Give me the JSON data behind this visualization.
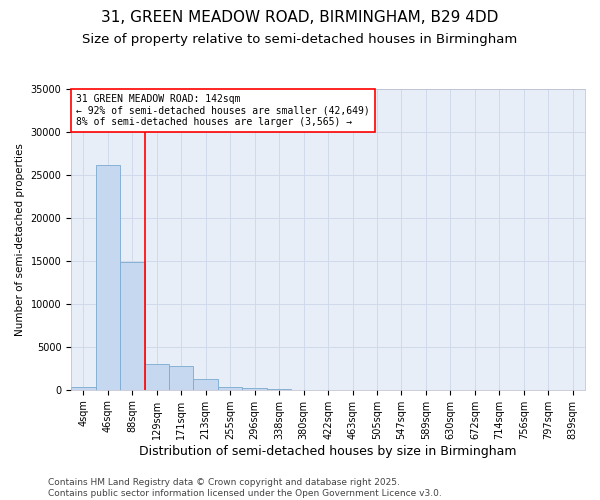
{
  "title1": "31, GREEN MEADOW ROAD, BIRMINGHAM, B29 4DD",
  "title2": "Size of property relative to semi-detached houses in Birmingham",
  "xlabel": "Distribution of semi-detached houses by size in Birmingham",
  "ylabel": "Number of semi-detached properties",
  "categories": [
    "4sqm",
    "46sqm",
    "88sqm",
    "129sqm",
    "171sqm",
    "213sqm",
    "255sqm",
    "296sqm",
    "338sqm",
    "380sqm",
    "422sqm",
    "463sqm",
    "505sqm",
    "547sqm",
    "589sqm",
    "630sqm",
    "672sqm",
    "714sqm",
    "756sqm",
    "797sqm",
    "839sqm"
  ],
  "values": [
    280,
    26200,
    14900,
    3000,
    2800,
    1200,
    310,
    200,
    50,
    20,
    0,
    0,
    0,
    0,
    0,
    0,
    0,
    0,
    0,
    0,
    0
  ],
  "bar_color": "#c5d8ef",
  "bar_edge_color": "#7aaad0",
  "grid_color": "#d0daea",
  "background_color": "#e8eef8",
  "red_line_index": 3,
  "annotation_text_line1": "31 GREEN MEADOW ROAD: 142sqm",
  "annotation_text_line2": "← 92% of semi-detached houses are smaller (42,649)",
  "annotation_text_line3": "8% of semi-detached houses are larger (3,565) →",
  "ylim": [
    0,
    35000
  ],
  "yticks": [
    0,
    5000,
    10000,
    15000,
    20000,
    25000,
    30000,
    35000
  ],
  "footer": "Contains HM Land Registry data © Crown copyright and database right 2025.\nContains public sector information licensed under the Open Government Licence v3.0.",
  "title1_fontsize": 11,
  "title2_fontsize": 9.5,
  "xlabel_fontsize": 9,
  "ylabel_fontsize": 7.5,
  "tick_fontsize": 7,
  "annotation_fontsize": 7,
  "footer_fontsize": 6.5
}
